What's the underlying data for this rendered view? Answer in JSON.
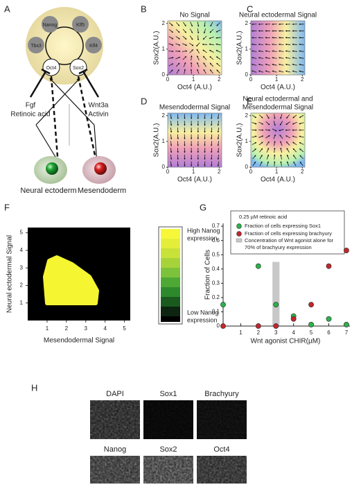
{
  "panel_labels": [
    "A",
    "B",
    "C",
    "D",
    "E",
    "F",
    "G",
    "H"
  ],
  "panel_a": {
    "genes": [
      "Nanog",
      "Klf5",
      "Tbx3",
      "Klf4",
      "Oct4",
      "Sox2"
    ],
    "left_signals": [
      "Fgf",
      "Retinoic acid"
    ],
    "right_signals": [
      "Wnt3a",
      "Activin"
    ],
    "fates": [
      "Neural ectoderm",
      "Mesendoderm"
    ]
  },
  "fields": [
    {
      "title": [
        "No Signal"
      ],
      "xlabel": "Oct4 (A.U.)",
      "ylabel": "Sox2(A.U.)",
      "ticks": [
        0,
        1,
        2
      ]
    },
    {
      "title": [
        "Neural ectodermal Signal"
      ],
      "xlabel": "Oct4 (A.U.)",
      "ylabel": "Sox2(A.U.)",
      "ticks": [
        0,
        1,
        2
      ]
    },
    {
      "title": [
        "Mesendodermal Signal"
      ],
      "xlabel": "Oct4 (A.U.)",
      "ylabel": "Sox2(A.U.)",
      "ticks": [
        0,
        1,
        2
      ]
    },
    {
      "title": [
        "Neural ectodermal and",
        "Mesendodermal Signal"
      ],
      "xlabel": "Oct4 (A.U.)",
      "ylabel": "Sox2(A.U.)",
      "ticks": [
        0,
        1,
        2
      ]
    }
  ],
  "panel_f": {
    "xlabel": "Mesendodermal Signal",
    "ylabel": "Neural ectodermal Signal",
    "ticks": [
      1,
      2,
      3,
      4,
      5
    ],
    "lim": [
      0,
      5.3
    ],
    "colorbar_high": [
      "High Nanog",
      "expression"
    ],
    "colorbar_low": [
      "Low Nanog",
      "expression"
    ]
  },
  "chart_data": {
    "type": "scatter",
    "legend_title": "0.25 µM retinoic acid",
    "xlabel": "Wnt agonist CHIR(µM)",
    "ylabel": "Fraction of Cells",
    "xlim": [
      0,
      7.2
    ],
    "ylim": [
      0,
      0.72
    ],
    "xticks": [
      1,
      2,
      3,
      4,
      5,
      6,
      7
    ],
    "yticks": [
      0,
      0.1,
      0.2,
      0.3,
      0.4,
      0.5,
      0.6,
      0.7
    ],
    "series": [
      {
        "name": "Fraction of cells expressing Sox1",
        "color": "#2bb24c",
        "x": [
          0,
          2,
          3,
          4,
          5,
          6,
          7
        ],
        "values": [
          0.15,
          0.42,
          0.15,
          0.07,
          0.01,
          0.05,
          0.01
        ]
      },
      {
        "name": "Fraction of cells expressing brachyury",
        "color": "#c1272d",
        "x": [
          0,
          2,
          3,
          4,
          5,
          6,
          7
        ],
        "values": [
          0,
          0,
          0,
          0.05,
          0.15,
          0.42,
          0.53
        ]
      }
    ],
    "band": {
      "name": [
        "Concentration of Wnt agonist alone for",
        "70% of  brachyury expression"
      ],
      "x": [
        2.8,
        3.2
      ],
      "value": 0.45,
      "color": "#c8c8c8"
    }
  },
  "panel_h": {
    "labels": [
      "DAPI",
      "Sox1",
      "Brachyury",
      "Nanog",
      "Sox2",
      "Oct4"
    ]
  }
}
